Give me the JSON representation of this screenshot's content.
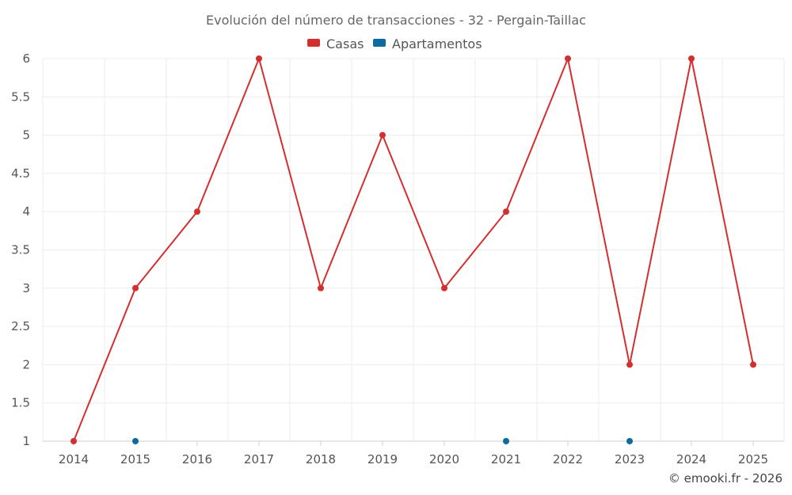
{
  "chart_data": {
    "type": "line",
    "title": "Evolución del número de transacciones - 32 - Pergain-Taillac",
    "xlabel": "",
    "ylabel": "",
    "categories": [
      "2014",
      "2015",
      "2016",
      "2017",
      "2018",
      "2019",
      "2020",
      "2021",
      "2022",
      "2023",
      "2024",
      "2025"
    ],
    "ylim": [
      1,
      6
    ],
    "yticks": [
      "1",
      "1.5",
      "2",
      "2.5",
      "3",
      "3.5",
      "4",
      "4.5",
      "5",
      "5.5",
      "6"
    ],
    "grid": true,
    "legend_position": "top-center",
    "series": [
      {
        "name": "Casas",
        "color": "#d32f2f",
        "values": [
          1,
          3,
          4,
          6,
          3,
          5,
          3,
          4,
          6,
          2,
          6,
          2
        ],
        "line": true
      },
      {
        "name": "Apartamentos",
        "color": "#0a6aa1",
        "values": [
          null,
          1,
          null,
          null,
          null,
          null,
          null,
          1,
          null,
          1,
          null,
          null
        ],
        "line": false
      }
    ]
  },
  "credit": "© emooki.fr - 2026"
}
